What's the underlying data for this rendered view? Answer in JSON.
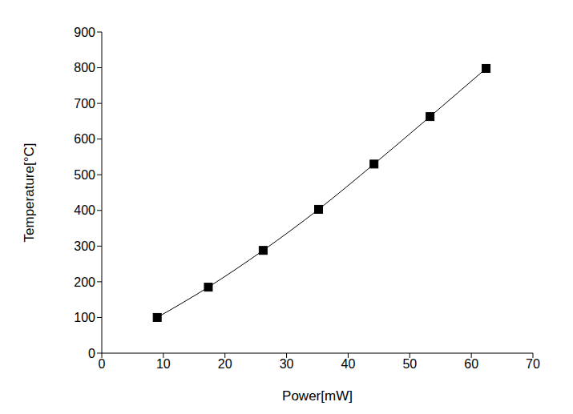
{
  "chart_data": {
    "type": "line",
    "x_label": "Power[mW]",
    "y_label": "Temperature[°C]",
    "x": [
      9,
      17.3,
      26.2,
      35.2,
      44.2,
      53.3,
      62.4
    ],
    "values": [
      100,
      185,
      288,
      403,
      530,
      663,
      798
    ],
    "xlim": [
      0,
      70
    ],
    "ylim": [
      0,
      900
    ],
    "xticks": [
      0,
      10,
      20,
      30,
      40,
      50,
      60,
      70
    ],
    "yticks": [
      0,
      100,
      200,
      300,
      400,
      500,
      600,
      700,
      800,
      900
    ],
    "color": "#000000",
    "marker": "square",
    "grid": false
  }
}
